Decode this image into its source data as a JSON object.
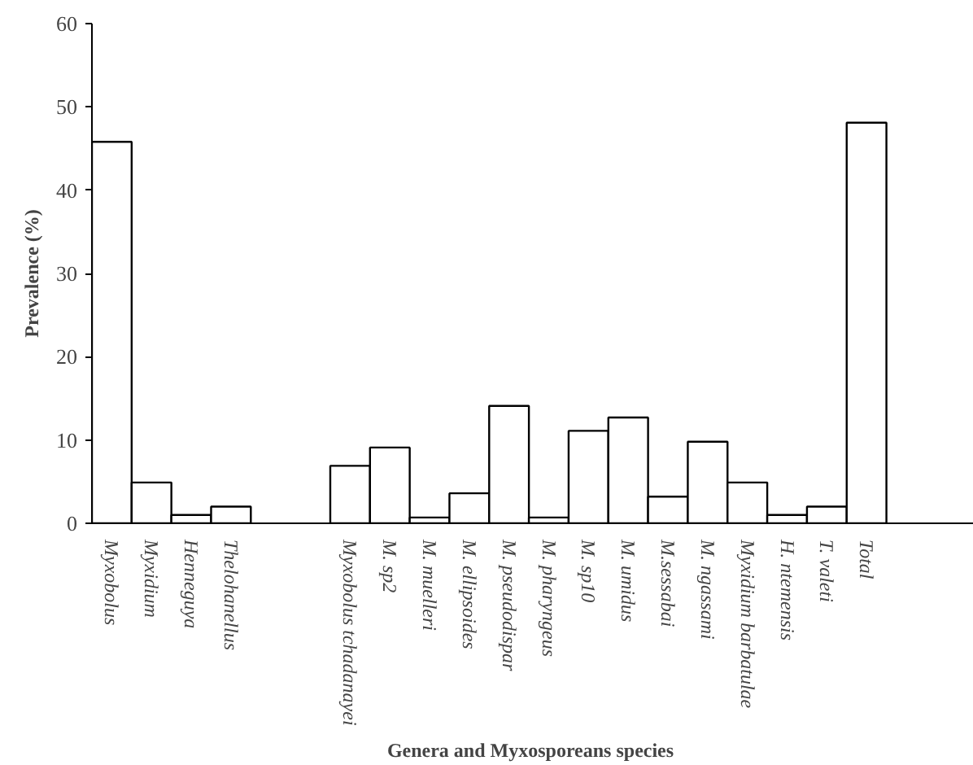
{
  "chart_data": {
    "type": "bar",
    "xlabel": "Genera  and Myxosporeans species",
    "ylabel": "Prevalence (%)",
    "categories": [
      "Myxobolus",
      "Myxidium",
      "Henneguya",
      "Thelohanellus",
      null,
      null,
      "Myxobolus tchadanayei",
      "M. sp2",
      "M. muelleri",
      "M. ellipsoides",
      "M. pseudodispar",
      "M. pharyngeus",
      "M. sp10",
      "M. umidus",
      "M.sessabai",
      "M. ngassami",
      "Myxidium barbatulae",
      "H. ntemensis",
      "T. valeti",
      "Total"
    ],
    "values": [
      45.8,
      4.9,
      1.0,
      2.0,
      null,
      null,
      6.9,
      9.1,
      0.7,
      3.6,
      14.1,
      0.7,
      11.1,
      12.7,
      3.2,
      9.8,
      4.9,
      1.0,
      2.0,
      48.1
    ],
    "color": "#ffffff",
    "ylim": [
      0,
      60
    ],
    "yticks": [
      0,
      10,
      20,
      30,
      40,
      50,
      60
    ],
    "grid": false,
    "legend": false
  }
}
